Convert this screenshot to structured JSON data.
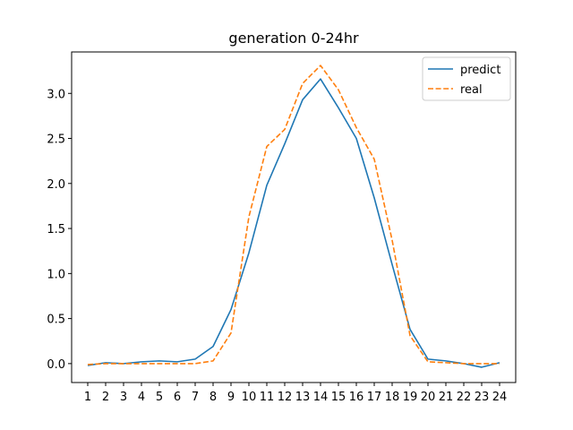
{
  "chart_data": {
    "type": "line",
    "title": "generation 0-24hr",
    "xlabel": "",
    "ylabel": "",
    "x": [
      1,
      2,
      3,
      4,
      5,
      6,
      7,
      8,
      9,
      10,
      11,
      12,
      13,
      14,
      15,
      16,
      17,
      18,
      19,
      20,
      21,
      22,
      23,
      24
    ],
    "xlim": [
      0.1,
      24.9
    ],
    "ylim": [
      -0.21,
      3.46
    ],
    "yticks": [
      0.0,
      0.5,
      1.0,
      1.5,
      2.0,
      2.5,
      3.0
    ],
    "ytick_labels": [
      "0.0",
      "0.5",
      "1.0",
      "1.5",
      "2.0",
      "2.5",
      "3.0"
    ],
    "xtick_labels": [
      "1",
      "2",
      "3",
      "4",
      "5",
      "6",
      "7",
      "8",
      "9",
      "10",
      "11",
      "12",
      "13",
      "14",
      "15",
      "16",
      "17",
      "18",
      "19",
      "20",
      "21",
      "22",
      "23",
      "24"
    ],
    "grid": false,
    "legend_position": "upper right",
    "series": [
      {
        "name": "predict",
        "color": "#1f77b4",
        "style": "solid",
        "values": [
          -0.02,
          0.01,
          0.0,
          0.02,
          0.03,
          0.02,
          0.05,
          0.19,
          0.6,
          1.23,
          1.98,
          2.44,
          2.93,
          3.16,
          2.84,
          2.5,
          1.84,
          1.1,
          0.38,
          0.05,
          0.03,
          0.0,
          -0.04,
          0.01
        ]
      },
      {
        "name": "real",
        "color": "#ff7f0e",
        "style": "dashed",
        "values": [
          -0.01,
          0.0,
          0.0,
          0.0,
          0.0,
          0.0,
          0.0,
          0.03,
          0.34,
          1.63,
          2.41,
          2.6,
          3.11,
          3.31,
          3.04,
          2.62,
          2.27,
          1.37,
          0.31,
          0.02,
          0.01,
          0.0,
          0.0,
          0.0
        ]
      }
    ]
  }
}
